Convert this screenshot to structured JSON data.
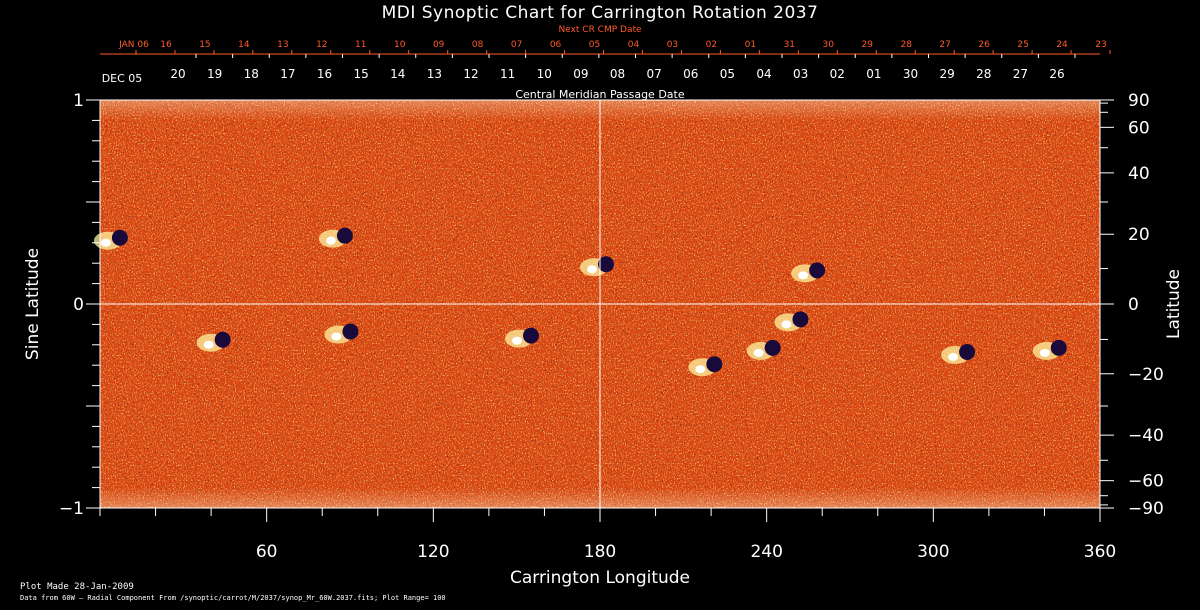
{
  "chart_data": {
    "type": "heatmap",
    "title": "MDI Synoptic Chart for Carrington Rotation 2037",
    "xlabel": "Carrington Longitude",
    "ylabel_left": "Sine Latitude",
    "ylabel_right": "Latitude",
    "xlim": [
      0,
      360
    ],
    "ylim": [
      -1,
      1
    ],
    "x_ticks": [
      60,
      120,
      180,
      240,
      300,
      360
    ],
    "y_ticks_left": [
      "1",
      "0",
      "−1"
    ],
    "y_ticks_left_values": [
      1,
      0,
      -1
    ],
    "y_ticks_right": [
      90,
      60,
      40,
      20,
      0,
      -20,
      -40,
      -60,
      -90
    ],
    "y_ticks_right_labels": [
      "90",
      "60",
      "40",
      "20",
      "0",
      "−20",
      "−40",
      "−60",
      "−90"
    ],
    "top_axis_1_title": "Next CR CMP Date",
    "top_axis_1_labels": [
      "JAN 06",
      "16",
      "15",
      "14",
      "13",
      "12",
      "11",
      "10",
      "09",
      "08",
      "07",
      "06",
      "05",
      "04",
      "03",
      "02",
      "01",
      "31",
      "30",
      "29",
      "28",
      "27",
      "26",
      "25",
      "24",
      "23"
    ],
    "top_axis_2_title": "Central Meridian Passage Date",
    "top_axis_2_labels": [
      "DEC 05",
      "20",
      "19",
      "18",
      "17",
      "16",
      "15",
      "14",
      "13",
      "12",
      "11",
      "10",
      "09",
      "08",
      "07",
      "06",
      "05",
      "04",
      "03",
      "02",
      "01",
      "30",
      "29",
      "28",
      "27",
      "26"
    ],
    "gridlines": [
      {
        "axis": "x",
        "value": 180
      },
      {
        "axis": "y",
        "value": 0
      }
    ],
    "active_regions": [
      {
        "lon": 5,
        "sinlat": 0.32
      },
      {
        "lon": 86,
        "sinlat": 0.33
      },
      {
        "lon": 180,
        "sinlat": 0.19
      },
      {
        "lon": 42,
        "sinlat": -0.18
      },
      {
        "lon": 88,
        "sinlat": -0.14
      },
      {
        "lon": 153,
        "sinlat": -0.16
      },
      {
        "lon": 219,
        "sinlat": -0.3
      },
      {
        "lon": 240,
        "sinlat": -0.22
      },
      {
        "lon": 250,
        "sinlat": -0.08
      },
      {
        "lon": 256,
        "sinlat": 0.16
      },
      {
        "lon": 310,
        "sinlat": -0.24
      },
      {
        "lon": 343,
        "sinlat": -0.22
      }
    ],
    "colors": {
      "background": "#000000",
      "field_base": "#d9440f",
      "positive": "#fff3a0",
      "negative": "#1a0a3c",
      "grid": "#ffffff",
      "top_axis_1": "#ff5a2a"
    }
  },
  "footer": {
    "plot_made": "Plot Made 28-Jan-2009",
    "data_source": "Data from 60W – Radial Component From /synoptic/carrot/M/2037/synop_Mr_60W.2037.fits; Plot Range= 100"
  }
}
